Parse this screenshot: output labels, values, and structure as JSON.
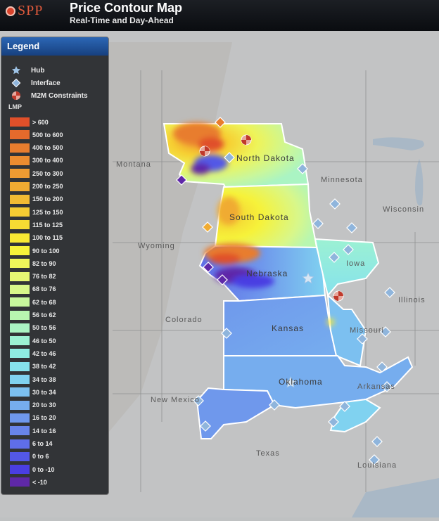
{
  "header": {
    "logo_text": "SPP",
    "title": "Price Contour Map",
    "subtitle": "Real-Time and Day-Ahead"
  },
  "legend": {
    "title": "Legend",
    "symbols": [
      {
        "label": "Hub",
        "icon": "star-icon",
        "color": "#9ec3e6"
      },
      {
        "label": "Interface",
        "icon": "diamond-icon",
        "color": "#8fb5dc"
      },
      {
        "label": "M2M Constraints",
        "icon": "m2m-constraint-icon",
        "color": "#d98a80"
      }
    ],
    "lmp_title": "LMP",
    "lmp_bins": [
      {
        "label": "> 600",
        "color": "#e0502a"
      },
      {
        "label": "500 to 600",
        "color": "#e56a2c"
      },
      {
        "label": "400 to 500",
        "color": "#e87d2e"
      },
      {
        "label": "300 to 400",
        "color": "#eb8c30"
      },
      {
        "label": "250 to 300",
        "color": "#ee9b32"
      },
      {
        "label": "200 to 250",
        "color": "#f0ab32"
      },
      {
        "label": "150 to 200",
        "color": "#f2bb33"
      },
      {
        "label": "125 to 150",
        "color": "#f4cb33"
      },
      {
        "label": "115 to 125",
        "color": "#f6db33"
      },
      {
        "label": "100 to 115",
        "color": "#f8e833"
      },
      {
        "label": "90 to 100",
        "color": "#f6f23a"
      },
      {
        "label": "82 to 90",
        "color": "#eff55a"
      },
      {
        "label": "76 to 82",
        "color": "#e5f673"
      },
      {
        "label": "68 to 76",
        "color": "#d8f78a"
      },
      {
        "label": "62 to 68",
        "color": "#c8f79d"
      },
      {
        "label": "56 to 62",
        "color": "#b8f6b0"
      },
      {
        "label": "50 to 56",
        "color": "#aaf4c3"
      },
      {
        "label": "46 to 50",
        "color": "#9cf1d3"
      },
      {
        "label": "42 to 46",
        "color": "#8eece1"
      },
      {
        "label": "38 to 42",
        "color": "#86e2ec"
      },
      {
        "label": "34 to 38",
        "color": "#80d2f0"
      },
      {
        "label": "30 to 34",
        "color": "#7cc0f0"
      },
      {
        "label": "20 to 30",
        "color": "#76adee"
      },
      {
        "label": "16 to 20",
        "color": "#6f98ec"
      },
      {
        "label": "14 to 16",
        "color": "#6884ea"
      },
      {
        "label": "6 to 14",
        "color": "#5f6ee8"
      },
      {
        "label": "0 to 6",
        "color": "#5358e6"
      },
      {
        "label": "0 to -10",
        "color": "#4a3ee2"
      },
      {
        "label": "< -10",
        "color": "#5f28a8"
      }
    ]
  },
  "map": {
    "geo_labels": [
      "Montana",
      "Wyoming",
      "Colorado",
      "New Mexico",
      "Texas",
      "Minnesota",
      "Wisconsin",
      "Iowa",
      "Illinois",
      "Missouri",
      "Arkansas",
      "Louisiana"
    ],
    "state_labels": [
      "North Dakota",
      "South Dakota",
      "Nebraska",
      "Kansas",
      "Oklahoma"
    ]
  }
}
